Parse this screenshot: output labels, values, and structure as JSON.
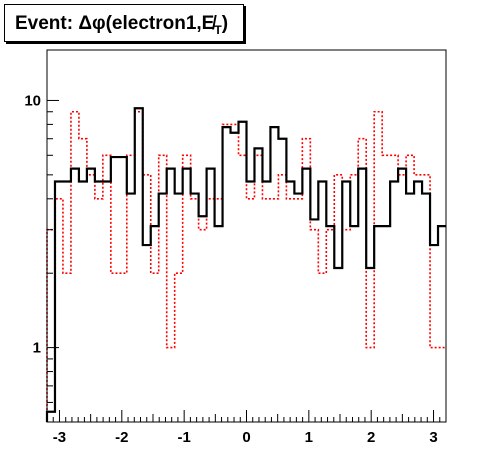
{
  "chart_data": {
    "type": "step-histogram",
    "title": "Event: Δφ(electron1,E̸",
    "title_subscript": "T",
    "title_suffix": ")",
    "xlim": [
      -3.2,
      3.2
    ],
    "ylim": [
      0.5,
      16
    ],
    "yscale": "log",
    "x_ticks": [
      -3,
      -2,
      -1,
      0,
      1,
      2,
      3
    ],
    "x_tick_labels": [
      "-3",
      "-2",
      "-1",
      "0",
      "1",
      "2",
      "3"
    ],
    "y_ticks": [
      1,
      10
    ],
    "y_tick_labels": [
      "1",
      "10"
    ],
    "bins": {
      "start": -3.2,
      "width": 0.128,
      "count": 50
    },
    "series": [
      {
        "style": "solid",
        "color": "#000000",
        "values": [
          0.55,
          4.7,
          4.7,
          5.3,
          4.7,
          5.3,
          4.7,
          4.7,
          5.9,
          5.9,
          4.2,
          9.3,
          2.6,
          3.1,
          4.2,
          5.3,
          4.2,
          5.3,
          4.2,
          3.4,
          5.3,
          3.1,
          7.8,
          7.4,
          8.2,
          4.7,
          6.4,
          4.7,
          7.8,
          7.0,
          4.7,
          4.2,
          5.3,
          3.3,
          4.7,
          3.1,
          2.1,
          4.7,
          3.1,
          5.3,
          2.1,
          3.1,
          3.1,
          4.7,
          5.3,
          4.2,
          4.7,
          4.2,
          2.6,
          3.1
        ]
      },
      {
        "style": "dotted",
        "color": "#ff0000",
        "values": [
          3.0,
          4.0,
          2.0,
          9.0,
          7.0,
          5.0,
          4.0,
          6.0,
          2.0,
          2.0,
          6.0,
          9.0,
          5.0,
          2.0,
          6.0,
          1.0,
          2.0,
          6.0,
          4.0,
          3.0,
          4.0,
          4.0,
          8.0,
          8.0,
          6.0,
          4.0,
          6.0,
          4.0,
          4.0,
          5.0,
          4.0,
          4.0,
          7.0,
          3.0,
          2.0,
          3.0,
          5.0,
          3.0,
          5.0,
          7.0,
          1.0,
          9.0,
          6.0,
          6.0,
          5.0,
          6.0,
          5.0,
          5.0,
          1.0,
          1.0
        ]
      }
    ]
  }
}
